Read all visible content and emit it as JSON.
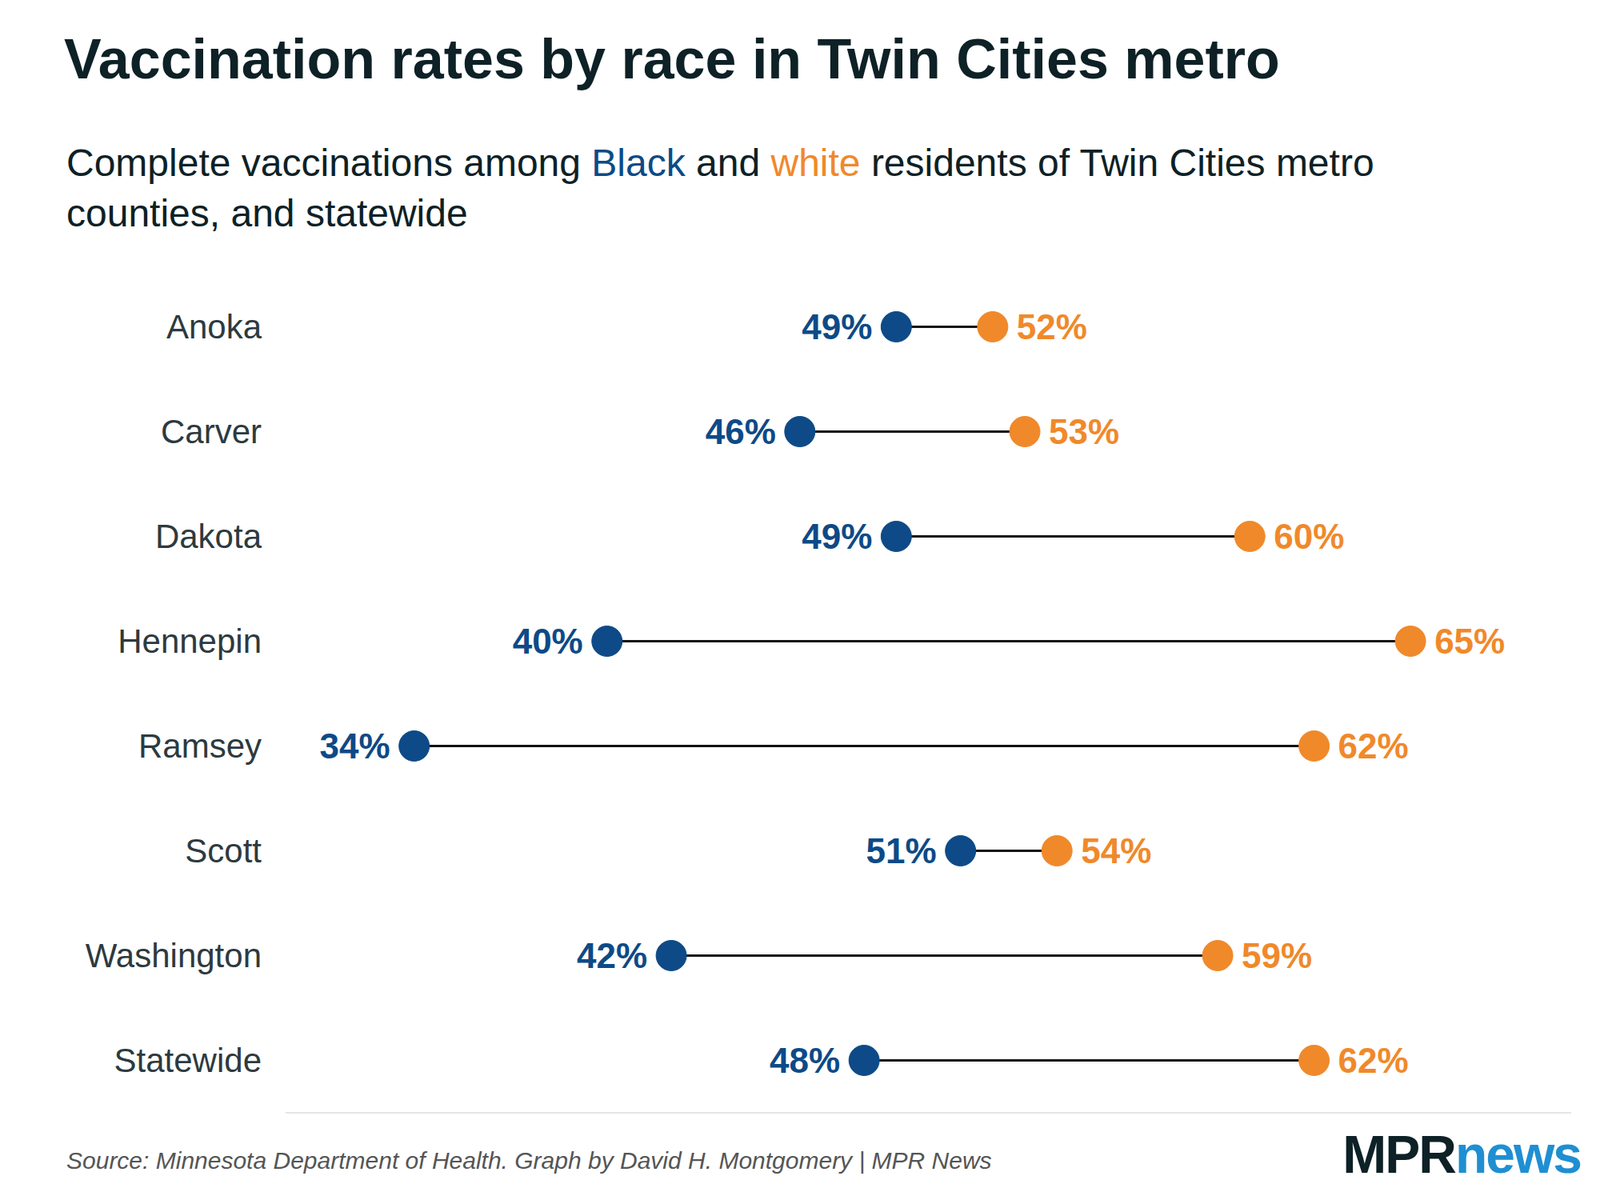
{
  "chart_data": {
    "type": "dumbbell",
    "title": "Vaccination rates by race in Twin Cities metro",
    "subtitle": "Complete vaccinations among Black and white residents of Twin Cities metro counties, and statewide",
    "source": "Source: Minnesota Department of Health. Graph by David H. Montgomery | MPR News",
    "logo": [
      "MPR",
      "news"
    ],
    "orientation": "horizontal",
    "categories": [
      "Anoka",
      "Carver",
      "Dakota",
      "Hennepin",
      "Ramsey",
      "Scott",
      "Washington",
      "Statewide"
    ],
    "series": [
      {
        "name": "Black",
        "color": "#0d4a87",
        "marker": "circle",
        "values": [
          49,
          46,
          49,
          40,
          34,
          51,
          42,
          48
        ],
        "value_labels": [
          "49%",
          "46%",
          "49%",
          "40%",
          "34%",
          "51%",
          "42%",
          "48%"
        ]
      },
      {
        "name": "white",
        "color": "#f0892a",
        "marker": "circle",
        "values": [
          52,
          53,
          60,
          65,
          62,
          54,
          59,
          62
        ],
        "value_labels": [
          "52%",
          "53%",
          "60%",
          "65%",
          "62%",
          "54%",
          "59%",
          "62%"
        ]
      }
    ],
    "xlim": [
      30,
      70
    ],
    "grid": false,
    "legend": false,
    "data_labels": true,
    "tick_labels": "y"
  }
}
